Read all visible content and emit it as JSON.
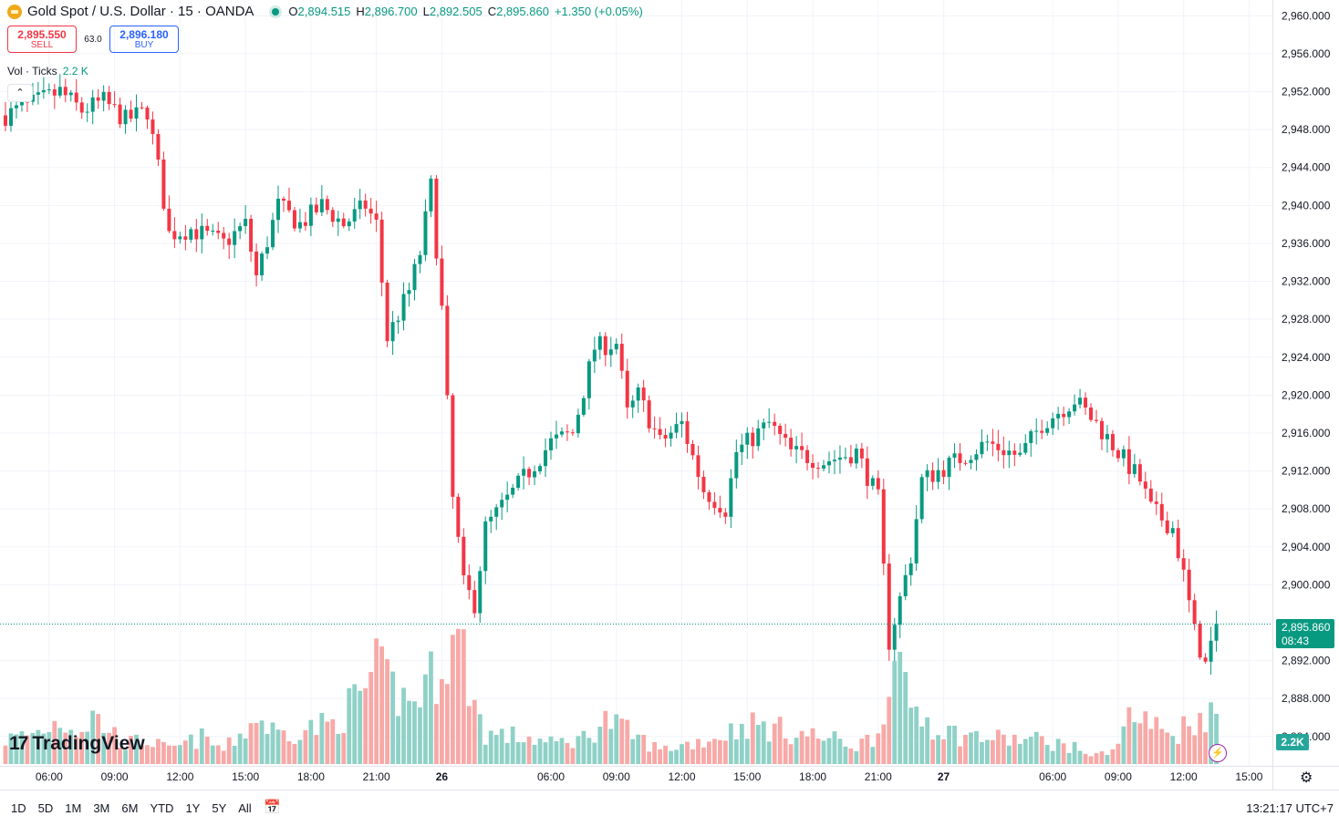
{
  "header": {
    "symbol_title": "Gold Spot / U.S. Dollar · 15 · OANDA",
    "ohlc": {
      "o_label": "O",
      "o": "2,894.515",
      "h_label": "H",
      "h": "2,896.700",
      "l_label": "L",
      "l": "2,892.505",
      "c_label": "C",
      "c": "2,895.860",
      "change": "+1.350 (+0.05%)"
    }
  },
  "trade": {
    "sell_price": "2,895.550",
    "sell_label": "SELL",
    "spread": "63.0",
    "buy_price": "2,896.180",
    "buy_label": "BUY"
  },
  "volume_legend": {
    "label": "Vol · Ticks",
    "value": "2.2 K"
  },
  "last_price": {
    "price": "2,895.860",
    "countdown": "08:43"
  },
  "volume_label": "2.2K",
  "logo_text": "TradingView",
  "bottom_bar": {
    "ranges": [
      "1D",
      "5D",
      "1M",
      "3M",
      "6M",
      "YTD",
      "1Y",
      "5Y",
      "All"
    ],
    "clock": "13:21:17 UTC+7"
  },
  "colors": {
    "up": "#089981",
    "down": "#f23645",
    "vol_up": "#8fd1c7",
    "vol_down": "#f7a9a7"
  },
  "icons": [
    "gold-coin-icon",
    "status-dot-icon",
    "chevron-up-icon",
    "bolt-icon",
    "gear-icon",
    "calendar-goto-icon"
  ],
  "chart_data": {
    "type": "candlestick",
    "interval": "15",
    "y_axis": {
      "ticks": [
        2960,
        2956,
        2952,
        2948,
        2944,
        2940,
        2936,
        2932,
        2928,
        2924,
        2920,
        2916,
        2912,
        2908,
        2904,
        2900,
        2896,
        2892,
        2888,
        2884
      ],
      "tick_labels": [
        "2,960.000",
        "2,956.000",
        "2,952.000",
        "2,948.000",
        "2,944.000",
        "2,940.000",
        "2,936.000",
        "2,932.000",
        "2,928.000",
        "2,924.000",
        "2,920.000",
        "2,916.000",
        "2,912.000",
        "2,908.000",
        "2,904.000",
        "2,900.000",
        "",
        "2,892.000",
        "2,888.000",
        "2,884.000"
      ],
      "range": [
        2883.5,
        2960.8
      ]
    },
    "x_axis": {
      "labels": [
        "06:00",
        "09:00",
        "12:00",
        "15:00",
        "18:00",
        "21:00",
        "26",
        "06:00",
        "09:00",
        "12:00",
        "15:00",
        "18:00",
        "21:00",
        "27",
        "06:00",
        "09:00",
        "12:00",
        "15:00"
      ],
      "label_bar_index": [
        8,
        20,
        32,
        44,
        56,
        68,
        80,
        100,
        112,
        124,
        136,
        148,
        160,
        172,
        192,
        204,
        216,
        228
      ]
    },
    "grid": true,
    "last_price": 2895.86,
    "bar_index_range": [
      -1,
      239
    ],
    "anchors": [
      [
        0,
        2949.5
      ],
      [
        4,
        2950.5
      ],
      [
        10,
        2952
      ],
      [
        14,
        2950
      ],
      [
        18,
        2951
      ],
      [
        22,
        2949
      ],
      [
        26,
        2950
      ],
      [
        28,
        2944
      ],
      [
        30,
        2937
      ],
      [
        34,
        2937.5
      ],
      [
        40,
        2936
      ],
      [
        44,
        2938
      ],
      [
        46,
        2932.5
      ],
      [
        50,
        2940
      ],
      [
        54,
        2938
      ],
      [
        58,
        2940
      ],
      [
        62,
        2938
      ],
      [
        66,
        2940
      ],
      [
        68,
        2938
      ],
      [
        70,
        2926
      ],
      [
        74,
        2931
      ],
      [
        76,
        2935
      ],
      [
        78,
        2942
      ],
      [
        80,
        2929
      ],
      [
        82,
        2909
      ],
      [
        84,
        2900
      ],
      [
        86,
        2898
      ],
      [
        88,
        2906
      ],
      [
        92,
        2909
      ],
      [
        96,
        2912
      ],
      [
        100,
        2915
      ],
      [
        104,
        2916
      ],
      [
        108,
        2925
      ],
      [
        112,
        2925.5
      ],
      [
        114,
        2918
      ],
      [
        116,
        2920
      ],
      [
        120,
        2915
      ],
      [
        124,
        2917
      ],
      [
        128,
        2910
      ],
      [
        132,
        2908
      ],
      [
        134,
        2914
      ],
      [
        140,
        2917
      ],
      [
        144,
        2914
      ],
      [
        150,
        2913
      ],
      [
        156,
        2914
      ],
      [
        160,
        2909
      ],
      [
        162,
        2894
      ],
      [
        166,
        2903
      ],
      [
        168,
        2911
      ],
      [
        174,
        2913
      ],
      [
        180,
        2915
      ],
      [
        186,
        2913.5
      ],
      [
        190,
        2917
      ],
      [
        196,
        2919.5
      ],
      [
        200,
        2917
      ],
      [
        204,
        2914
      ],
      [
        208,
        2911
      ],
      [
        210,
        2908
      ],
      [
        214,
        2906
      ],
      [
        216,
        2901
      ],
      [
        218,
        2895
      ],
      [
        220,
        2891.5
      ],
      [
        222,
        2895.86
      ]
    ],
    "volume_anchors": [
      [
        0,
        12
      ],
      [
        6,
        16
      ],
      [
        10,
        22
      ],
      [
        14,
        17
      ],
      [
        16,
        24
      ],
      [
        22,
        10
      ],
      [
        26,
        12
      ],
      [
        30,
        7
      ],
      [
        36,
        13
      ],
      [
        40,
        7
      ],
      [
        44,
        17
      ],
      [
        46,
        23
      ],
      [
        50,
        15
      ],
      [
        60,
        20
      ],
      [
        64,
        31
      ],
      [
        66,
        38
      ],
      [
        68,
        45
      ],
      [
        72,
        35
      ],
      [
        74,
        30
      ],
      [
        76,
        36
      ],
      [
        78,
        42
      ],
      [
        80,
        55
      ],
      [
        82,
        60
      ],
      [
        84,
        55
      ],
      [
        86,
        30
      ],
      [
        88,
        15
      ],
      [
        96,
        13
      ],
      [
        100,
        10
      ],
      [
        106,
        13
      ],
      [
        110,
        22
      ],
      [
        114,
        16
      ],
      [
        120,
        7
      ],
      [
        130,
        13
      ],
      [
        136,
        20
      ],
      [
        144,
        16
      ],
      [
        152,
        12
      ],
      [
        156,
        9
      ],
      [
        160,
        15
      ],
      [
        162,
        50
      ],
      [
        166,
        30
      ],
      [
        170,
        20
      ],
      [
        174,
        15
      ],
      [
        180,
        13
      ],
      [
        186,
        12
      ],
      [
        190,
        12
      ],
      [
        196,
        8
      ],
      [
        200,
        4
      ],
      [
        204,
        10
      ],
      [
        206,
        24
      ],
      [
        210,
        20
      ],
      [
        214,
        14
      ],
      [
        218,
        23
      ],
      [
        220,
        25
      ],
      [
        222,
        24
      ]
    ]
  }
}
